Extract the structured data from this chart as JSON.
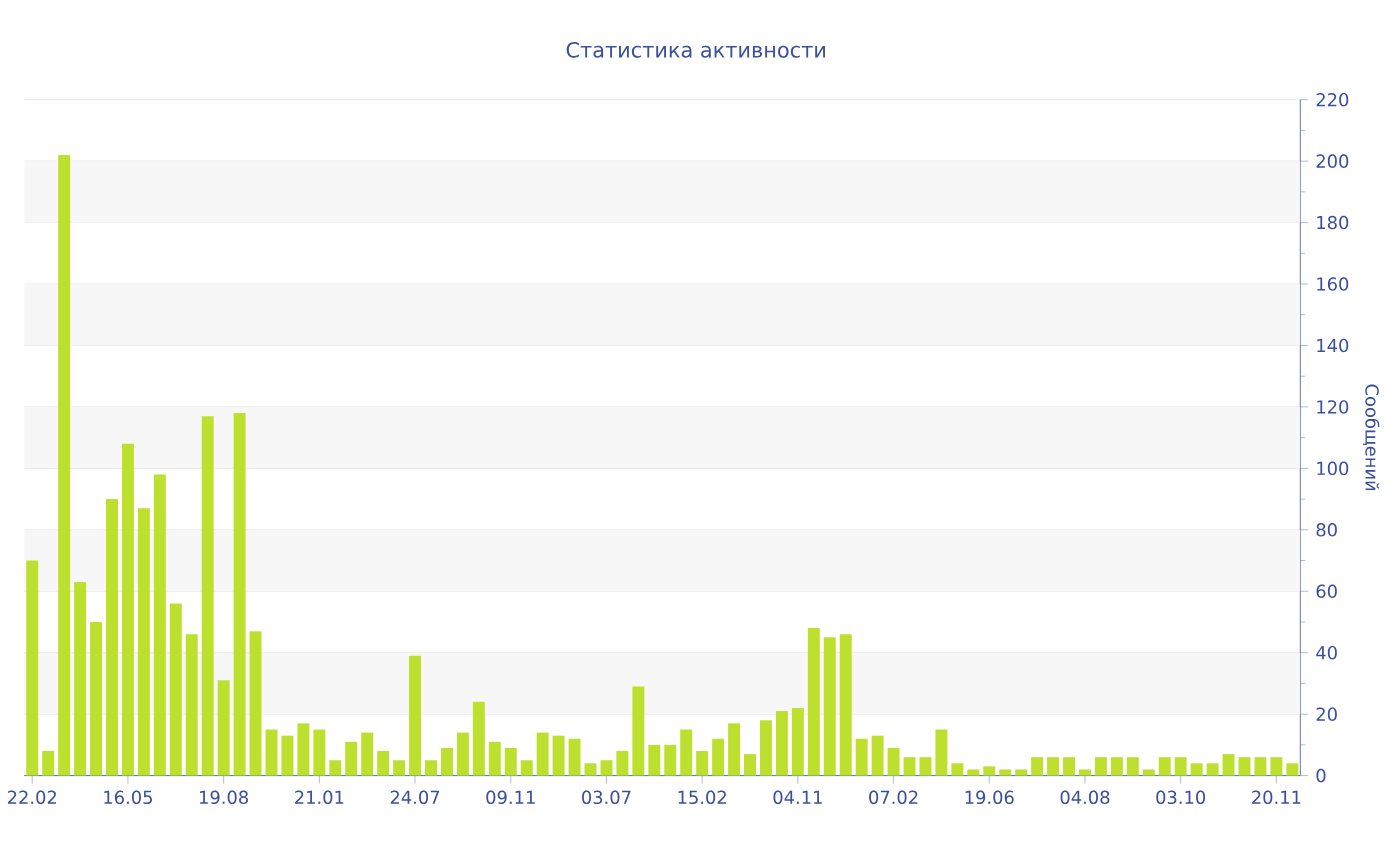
{
  "chart_data": {
    "type": "bar",
    "title": "Статистика активности",
    "ylabel": "Сообщений",
    "categories": [
      "22.02",
      null,
      null,
      null,
      null,
      null,
      "16.05",
      null,
      null,
      null,
      null,
      null,
      "19.08",
      null,
      null,
      null,
      null,
      null,
      "21.01",
      null,
      null,
      null,
      null,
      null,
      "24.07",
      null,
      null,
      null,
      null,
      null,
      "09.11",
      null,
      null,
      null,
      null,
      null,
      "03.07",
      null,
      null,
      null,
      null,
      null,
      "15.02",
      null,
      null,
      null,
      null,
      null,
      "04.11",
      null,
      null,
      null,
      null,
      null,
      "07.02",
      null,
      null,
      null,
      null,
      null,
      "19.06",
      null,
      null,
      null,
      null,
      null,
      "04.08",
      null,
      null,
      null,
      null,
      null,
      "03.10",
      null,
      null,
      null,
      null,
      null,
      "20.11",
      null
    ],
    "values": [
      70,
      8,
      202,
      63,
      50,
      90,
      108,
      87,
      98,
      56,
      46,
      117,
      31,
      118,
      47,
      15,
      13,
      17,
      15,
      5,
      11,
      14,
      8,
      5,
      39,
      5,
      9,
      14,
      24,
      11,
      9,
      5,
      14,
      13,
      12,
      4,
      5,
      8,
      29,
      10,
      10,
      15,
      8,
      12,
      17,
      7,
      18,
      21,
      22,
      48,
      45,
      46,
      12,
      13,
      9,
      6,
      6,
      15,
      4,
      2,
      3,
      2,
      2,
      6,
      6,
      6,
      2,
      6,
      6,
      6,
      2,
      6,
      6,
      4,
      4,
      7,
      6,
      6,
      6,
      4
    ],
    "color": "#bde02f",
    "ylim": [
      0,
      220
    ],
    "yticks": [
      0,
      20,
      40,
      60,
      80,
      100,
      120,
      140,
      160,
      180,
      200,
      220
    ],
    "grid": "y"
  }
}
